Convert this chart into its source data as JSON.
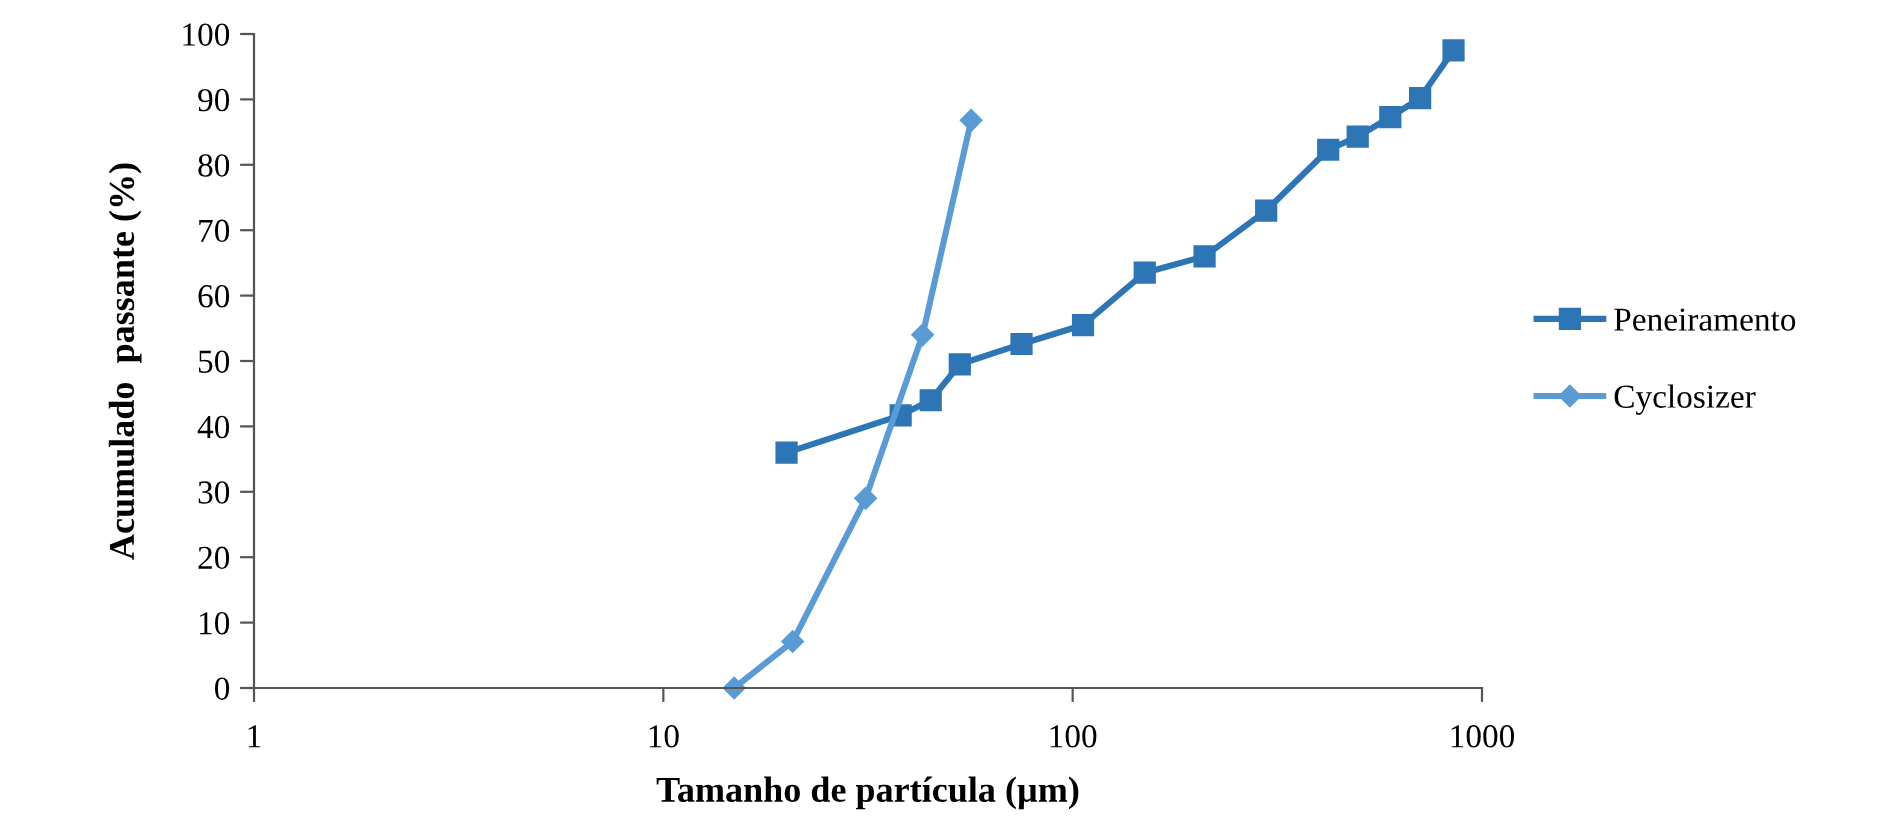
{
  "chart_data": {
    "type": "line",
    "xlabel": "Tamanho de partícula (µm)",
    "ylabel": "Acumulado  passante (%)",
    "log": "x",
    "xlim": [
      1,
      1000
    ],
    "xticks": [
      1,
      10,
      100,
      1000
    ],
    "ylim": [
      0,
      100
    ],
    "yticks": [
      0,
      10,
      20,
      30,
      40,
      50,
      60,
      70,
      80,
      90,
      100
    ],
    "grid": false,
    "legend": "right",
    "series": [
      {
        "name": "Peneiramento",
        "color": "#2e75b6",
        "marker": "square",
        "x": [
          20,
          38,
          45,
          53,
          75,
          106,
          150,
          210,
          297,
          421,
          497,
          597,
          706,
          852
        ],
        "values": [
          36,
          41.7,
          44,
          49.5,
          52.6,
          55.5,
          63.5,
          66,
          73,
          82.3,
          84.3,
          87.3,
          90.2,
          97.5
        ]
      },
      {
        "name": "Cyclosizer",
        "color": "#5b9bd5",
        "marker": "diamond",
        "x": [
          14.9,
          20.7,
          31.2,
          43,
          56.5
        ],
        "values": [
          0,
          7.1,
          29,
          54,
          86.8
        ]
      }
    ]
  }
}
